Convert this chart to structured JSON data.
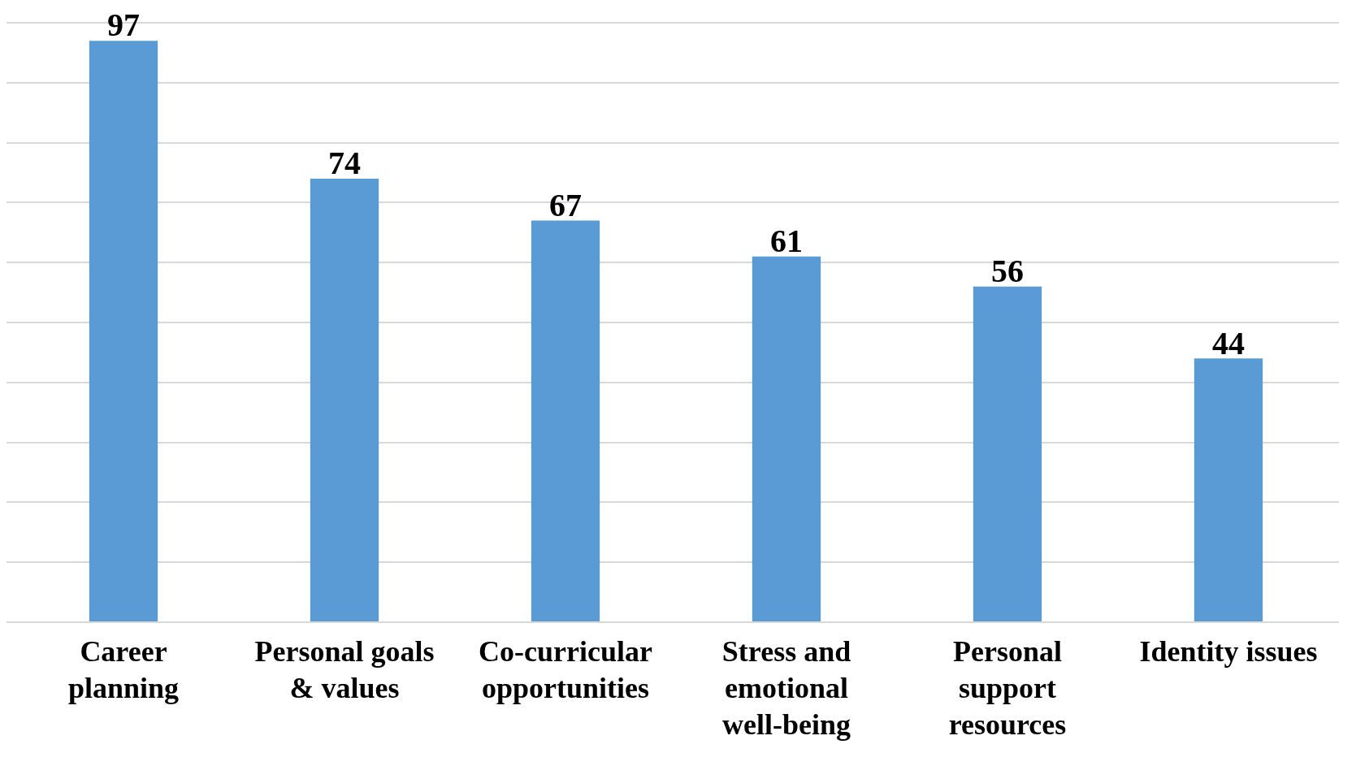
{
  "chart_data": {
    "type": "bar",
    "categories": [
      "Career planning",
      "Personal goals & values",
      "Co-curricular opportunities",
      "Stress and emotional well-being",
      "Personal support resources",
      "Identity issues"
    ],
    "values": [
      97,
      74,
      67,
      61,
      56,
      44
    ],
    "color": "#5b9bd5",
    "ylim": [
      0,
      100
    ],
    "yticks": [
      {
        "value": 0,
        "label": null
      },
      {
        "value": 10,
        "label": null
      },
      {
        "value": 20,
        "label": null
      },
      {
        "value": 30,
        "label": null
      },
      {
        "value": 40,
        "label": null
      },
      {
        "value": 50,
        "label": null
      },
      {
        "value": 60,
        "label": null
      },
      {
        "value": 70,
        "label": null
      },
      {
        "value": 80,
        "label": null
      },
      {
        "value": 90,
        "label": null
      },
      {
        "value": 100,
        "label": null
      }
    ],
    "grid": "y",
    "tick_labels": "x",
    "data_labels": true
  }
}
